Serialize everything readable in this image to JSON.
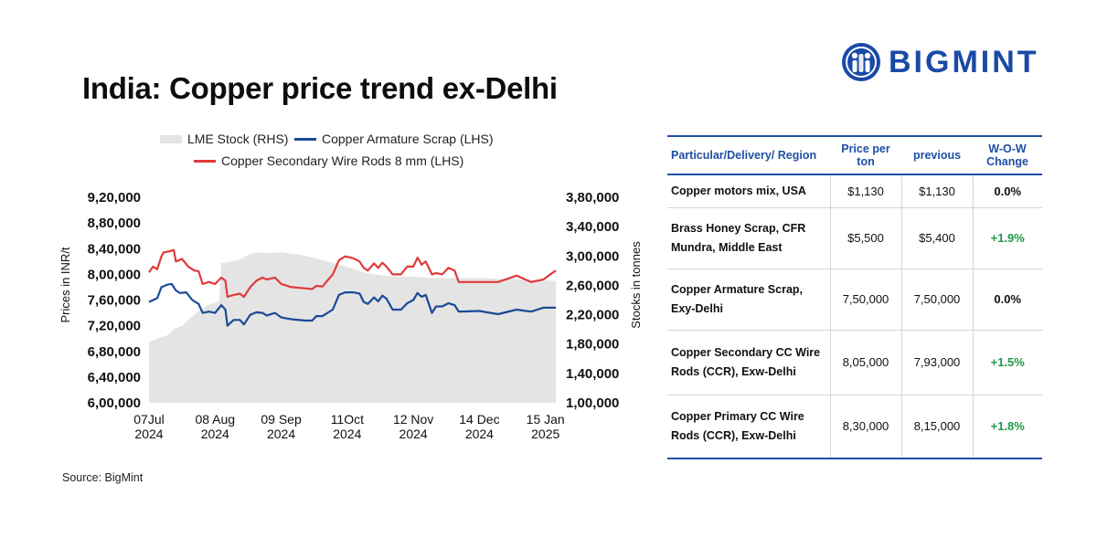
{
  "title": "India: Copper price trend ex-Delhi",
  "logo": {
    "text": "BIGMINT"
  },
  "source": "Source: BigMint",
  "colors": {
    "lme_stock": "#e4e4e4",
    "armature_scrap": "#1a4a96",
    "secondary_wire_rods": "#e03a3a",
    "accent_blue": "#1f4fa3",
    "positive_green": "#1f9a4a"
  },
  "chart_data": {
    "type": "line",
    "legend": [
      {
        "name": "LME Stock (RHS)",
        "kind": "area"
      },
      {
        "name": "Copper Armature Scrap (LHS)",
        "kind": "line"
      },
      {
        "name": "Copper Secondary Wire Rods 8 mm (LHS)",
        "kind": "line"
      }
    ],
    "ylabel_left": "Prices in INR/t",
    "ylabel_right": "Stocks in tonnes",
    "yleft_ticks": [
      "6,00,000",
      "6,40,000",
      "6,80,000",
      "7,20,000",
      "7,60,000",
      "8,00,000",
      "8,40,000",
      "8,80,000",
      "9,20,000"
    ],
    "yright_ticks": [
      "1,00,000",
      "1,40,000",
      "1,80,000",
      "2,20,000",
      "2,60,000",
      "3,00,000",
      "3,40,000",
      "3,80,000"
    ],
    "ylim_left": [
      600000,
      920000
    ],
    "ylim_right": [
      100000,
      380000
    ],
    "xlim": [
      "2024-07-07",
      "2025-01-20"
    ],
    "x_ticks": [
      {
        "line1": "07Jul",
        "line2": "2024",
        "date": "2024-07-07"
      },
      {
        "line1": "08 Aug",
        "line2": "2024",
        "date": "2024-08-08"
      },
      {
        "line1": "09 Sep",
        "line2": "2024",
        "date": "2024-09-09"
      },
      {
        "line1": "11Oct",
        "line2": "2024",
        "date": "2024-10-11"
      },
      {
        "line1": "12 Nov",
        "line2": "2024",
        "date": "2024-11-12"
      },
      {
        "line1": "14 Dec",
        "line2": "2024",
        "date": "2024-12-14"
      },
      {
        "line1": "15 Jan",
        "line2": "2025",
        "date": "2025-01-15"
      }
    ],
    "series": [
      {
        "name": "LME Stock (RHS)",
        "axis": "right",
        "type": "area",
        "points": [
          [
            "2024-07-07",
            183000
          ],
          [
            "2024-07-10",
            186000
          ],
          [
            "2024-07-13",
            190000
          ],
          [
            "2024-07-16",
            192000
          ],
          [
            "2024-07-19",
            200000
          ],
          [
            "2024-07-23",
            205000
          ],
          [
            "2024-07-27",
            215000
          ],
          [
            "2024-07-31",
            225000
          ],
          [
            "2024-08-04",
            232000
          ],
          [
            "2024-08-08",
            236000
          ],
          [
            "2024-08-10",
            238000
          ],
          [
            "2024-08-11",
            290000
          ],
          [
            "2024-08-15",
            292000
          ],
          [
            "2024-08-20",
            295000
          ],
          [
            "2024-08-25",
            303000
          ],
          [
            "2024-08-30",
            305000
          ],
          [
            "2024-09-04",
            304000
          ],
          [
            "2024-09-09",
            305000
          ],
          [
            "2024-09-15",
            303000
          ],
          [
            "2024-09-21",
            300000
          ],
          [
            "2024-09-27",
            296000
          ],
          [
            "2024-10-03",
            291000
          ],
          [
            "2024-10-11",
            285000
          ],
          [
            "2024-10-20",
            277000
          ],
          [
            "2024-10-29",
            273000
          ],
          [
            "2024-11-05",
            272000
          ],
          [
            "2024-11-12",
            272000
          ],
          [
            "2024-11-20",
            270000
          ],
          [
            "2024-11-30",
            270000
          ],
          [
            "2024-12-14",
            270000
          ],
          [
            "2024-12-25",
            269000
          ],
          [
            "2025-01-05",
            268000
          ],
          [
            "2025-01-20",
            266000
          ]
        ]
      },
      {
        "name": "Copper Armature Scrap (LHS)",
        "axis": "left",
        "type": "line",
        "points": [
          [
            "2024-07-07",
            757000
          ],
          [
            "2024-07-09",
            760000
          ],
          [
            "2024-07-11",
            763000
          ],
          [
            "2024-07-13",
            780000
          ],
          [
            "2024-07-16",
            784000
          ],
          [
            "2024-07-18",
            785000
          ],
          [
            "2024-07-20",
            775000
          ],
          [
            "2024-07-22",
            771000
          ],
          [
            "2024-07-25",
            772000
          ],
          [
            "2024-07-28",
            760000
          ],
          [
            "2024-07-31",
            754000
          ],
          [
            "2024-08-02",
            740000
          ],
          [
            "2024-08-05",
            742000
          ],
          [
            "2024-08-08",
            740000
          ],
          [
            "2024-08-11",
            752000
          ],
          [
            "2024-08-13",
            745000
          ],
          [
            "2024-08-14",
            720000
          ],
          [
            "2024-08-17",
            729000
          ],
          [
            "2024-08-20",
            729000
          ],
          [
            "2024-08-22",
            722000
          ],
          [
            "2024-08-25",
            737000
          ],
          [
            "2024-08-28",
            741000
          ],
          [
            "2024-08-31",
            740000
          ],
          [
            "2024-09-02",
            736000
          ],
          [
            "2024-09-06",
            740000
          ],
          [
            "2024-09-09",
            733000
          ],
          [
            "2024-09-14",
            730000
          ],
          [
            "2024-09-21",
            728000
          ],
          [
            "2024-09-24",
            728000
          ],
          [
            "2024-09-26",
            735000
          ],
          [
            "2024-09-29",
            735000
          ],
          [
            "2024-10-04",
            745000
          ],
          [
            "2024-10-07",
            768000
          ],
          [
            "2024-10-10",
            772000
          ],
          [
            "2024-10-14",
            772000
          ],
          [
            "2024-10-17",
            770000
          ],
          [
            "2024-10-19",
            757000
          ],
          [
            "2024-10-21",
            754000
          ],
          [
            "2024-10-24",
            764000
          ],
          [
            "2024-10-26",
            758000
          ],
          [
            "2024-10-28",
            767000
          ],
          [
            "2024-10-30",
            762000
          ],
          [
            "2024-11-02",
            745000
          ],
          [
            "2024-11-06",
            745000
          ],
          [
            "2024-11-09",
            755000
          ],
          [
            "2024-11-12",
            760000
          ],
          [
            "2024-11-14",
            771000
          ],
          [
            "2024-11-16",
            765000
          ],
          [
            "2024-11-18",
            768000
          ],
          [
            "2024-11-21",
            740000
          ],
          [
            "2024-11-23",
            750000
          ],
          [
            "2024-11-26",
            750000
          ],
          [
            "2024-11-29",
            755000
          ],
          [
            "2024-12-02",
            752000
          ],
          [
            "2024-12-04",
            742000
          ],
          [
            "2024-12-14",
            743000
          ],
          [
            "2024-12-23",
            738000
          ],
          [
            "2025-01-01",
            745000
          ],
          [
            "2025-01-08",
            742000
          ],
          [
            "2025-01-14",
            748000
          ],
          [
            "2025-01-20",
            748000
          ]
        ]
      },
      {
        "name": "Copper Secondary Wire Rods 8 mm (LHS)",
        "axis": "left",
        "type": "line",
        "points": [
          [
            "2024-07-07",
            803000
          ],
          [
            "2024-07-09",
            812000
          ],
          [
            "2024-07-11",
            808000
          ],
          [
            "2024-07-13",
            828000
          ],
          [
            "2024-07-14",
            834000
          ],
          [
            "2024-07-17",
            836000
          ],
          [
            "2024-07-19",
            838000
          ],
          [
            "2024-07-20",
            820000
          ],
          [
            "2024-07-23",
            824000
          ],
          [
            "2024-07-26",
            812000
          ],
          [
            "2024-07-29",
            806000
          ],
          [
            "2024-07-31",
            805000
          ],
          [
            "2024-08-02",
            785000
          ],
          [
            "2024-08-05",
            788000
          ],
          [
            "2024-08-08",
            785000
          ],
          [
            "2024-08-11",
            795000
          ],
          [
            "2024-08-13",
            790000
          ],
          [
            "2024-08-14",
            765000
          ],
          [
            "2024-08-17",
            768000
          ],
          [
            "2024-08-20",
            770000
          ],
          [
            "2024-08-22",
            765000
          ],
          [
            "2024-08-25",
            780000
          ],
          [
            "2024-08-28",
            790000
          ],
          [
            "2024-08-31",
            795000
          ],
          [
            "2024-09-02",
            792000
          ],
          [
            "2024-09-06",
            795000
          ],
          [
            "2024-09-09",
            785000
          ],
          [
            "2024-09-14",
            780000
          ],
          [
            "2024-09-21",
            778000
          ],
          [
            "2024-09-24",
            777000
          ],
          [
            "2024-09-26",
            782000
          ],
          [
            "2024-09-29",
            781000
          ],
          [
            "2024-10-04",
            800000
          ],
          [
            "2024-10-07",
            822000
          ],
          [
            "2024-10-10",
            828000
          ],
          [
            "2024-10-14",
            825000
          ],
          [
            "2024-10-17",
            820000
          ],
          [
            "2024-10-19",
            810000
          ],
          [
            "2024-10-21",
            806000
          ],
          [
            "2024-10-24",
            817000
          ],
          [
            "2024-10-26",
            810000
          ],
          [
            "2024-10-28",
            818000
          ],
          [
            "2024-10-30",
            812000
          ],
          [
            "2024-11-02",
            800000
          ],
          [
            "2024-11-06",
            800000
          ],
          [
            "2024-11-09",
            812000
          ],
          [
            "2024-11-12",
            812000
          ],
          [
            "2024-11-14",
            826000
          ],
          [
            "2024-11-16",
            815000
          ],
          [
            "2024-11-18",
            820000
          ],
          [
            "2024-11-21",
            800000
          ],
          [
            "2024-11-23",
            802000
          ],
          [
            "2024-11-26",
            800000
          ],
          [
            "2024-11-29",
            810000
          ],
          [
            "2024-12-02",
            806000
          ],
          [
            "2024-12-04",
            788000
          ],
          [
            "2024-12-14",
            788000
          ],
          [
            "2024-12-23",
            788000
          ],
          [
            "2025-01-01",
            798000
          ],
          [
            "2025-01-08",
            788000
          ],
          [
            "2025-01-14",
            792000
          ],
          [
            "2025-01-20",
            806000
          ]
        ]
      }
    ]
  },
  "table": {
    "headers": [
      "Particular/Delivery/ Region",
      "Price per ton",
      "previous",
      "W-O-W Change"
    ],
    "rows": [
      {
        "item": "Copper motors mix, USA",
        "price": "$1,130",
        "previous": "$1,130",
        "change": "0.0%",
        "trend": "flat"
      },
      {
        "item": "Brass Honey Scrap, CFR Mundra, Middle East",
        "price": "$5,500",
        "previous": "$5,400",
        "change": "+1.9%",
        "trend": "up"
      },
      {
        "item": "Copper Armature Scrap, Exy-Delhi",
        "price": "7,50,000",
        "previous": "7,50,000",
        "change": "0.0%",
        "trend": "flat"
      },
      {
        "item": "Copper Secondary CC Wire Rods (CCR), Exw-Delhi",
        "price": "8,05,000",
        "previous": "7,93,000",
        "change": "+1.5%",
        "trend": "up"
      },
      {
        "item": "Copper Primary CC Wire Rods (CCR), Exw-Delhi",
        "price": "8,30,000",
        "previous": "8,15,000",
        "change": "+1.8%",
        "trend": "up"
      }
    ]
  }
}
